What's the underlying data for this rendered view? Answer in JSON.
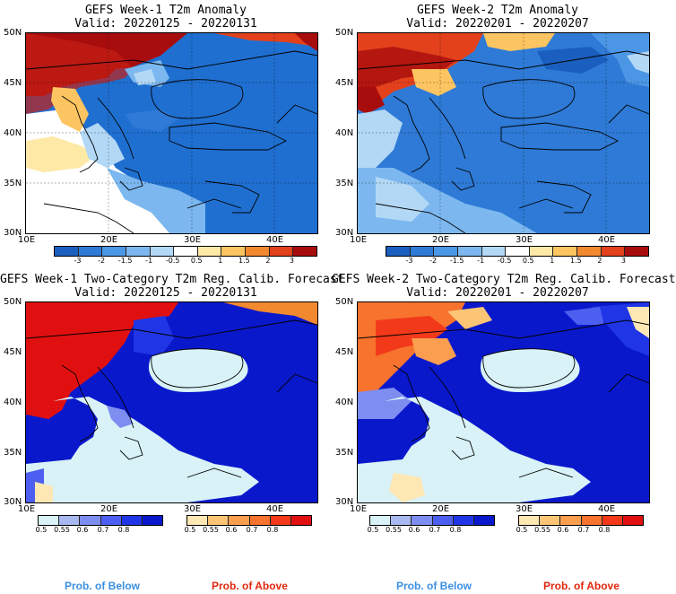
{
  "panels": [
    {
      "title": "GEFS Week-1 T2m Anomaly",
      "valid": "Valid: 20220125 - 20220131",
      "lat_labels": [
        "50N",
        "45N",
        "40N",
        "35N",
        "30N"
      ],
      "lon_labels": [
        "10E",
        "20E",
        "30E",
        "40E"
      ],
      "anomaly_colorbar_ticks": [
        "-3",
        "-2",
        "-1.5",
        "-1",
        "-0.5",
        "0.5",
        "1",
        "1.5",
        "2",
        "3"
      ]
    },
    {
      "title": "GEFS Week-2 T2m Anomaly",
      "valid": "Valid: 20220201 - 20220207",
      "lat_labels": [
        "50N",
        "45N",
        "40N",
        "35N",
        "30N"
      ],
      "lon_labels": [
        "10E",
        "20E",
        "30E",
        "40E"
      ],
      "anomaly_colorbar_ticks": [
        "-3",
        "-2",
        "-1.5",
        "-1",
        "-0.5",
        "0.5",
        "1",
        "1.5",
        "2",
        "3"
      ]
    },
    {
      "title": "GEFS Week-1 Two-Category T2m Reg. Calib. Forecast",
      "valid": "Valid: 20220125 - 20220131",
      "lat_labels": [
        "50N",
        "45N",
        "40N",
        "35N",
        "30N"
      ],
      "lon_labels": [
        "10E",
        "20E",
        "30E",
        "40E"
      ],
      "below_ticks": [
        "0.5",
        "0.55",
        "0.6",
        "0.7",
        "0.8"
      ],
      "above_ticks": [
        "0.5",
        "0.55",
        "0.6",
        "0.7",
        "0.8"
      ]
    },
    {
      "title": "GEFS Week-2 Two-Category T2m Reg. Calib. Forecast",
      "valid": "Valid: 20220201 - 20220207",
      "lat_labels": [
        "50N",
        "45N",
        "40N",
        "35N",
        "30N"
      ],
      "lon_labels": [
        "10E",
        "20E",
        "30E",
        "40E"
      ],
      "below_ticks": [
        "0.5",
        "0.55",
        "0.6",
        "0.7",
        "0.8"
      ],
      "above_ticks": [
        "0.5",
        "0.55",
        "0.6",
        "0.7",
        "0.8"
      ]
    }
  ],
  "legend": {
    "prob_below": "Prob. of Below",
    "prob_above": "Prob. of Above"
  },
  "colors": {
    "anomaly_scale": [
      "#1a5fbf",
      "#2e7ad6",
      "#4b97e6",
      "#7cb8ef",
      "#b3d8f6",
      "#ffffff",
      "#ffe9a6",
      "#fdc561",
      "#f2892f",
      "#e2411c",
      "#a80d0d"
    ],
    "below_scale": [
      "#d9f2f7",
      "#a8b8f0",
      "#7d8ef0",
      "#4d5ff0",
      "#1f35e6",
      "#0a18cc"
    ],
    "above_scale": [
      "#fde7b3",
      "#fcc575",
      "#fb9e4f",
      "#f7732e",
      "#f23a1a",
      "#e01010"
    ],
    "sea_prob": "#d9f2f7",
    "prob_below_label": "#3a8fe0",
    "prob_above_label": "#e0280d"
  }
}
